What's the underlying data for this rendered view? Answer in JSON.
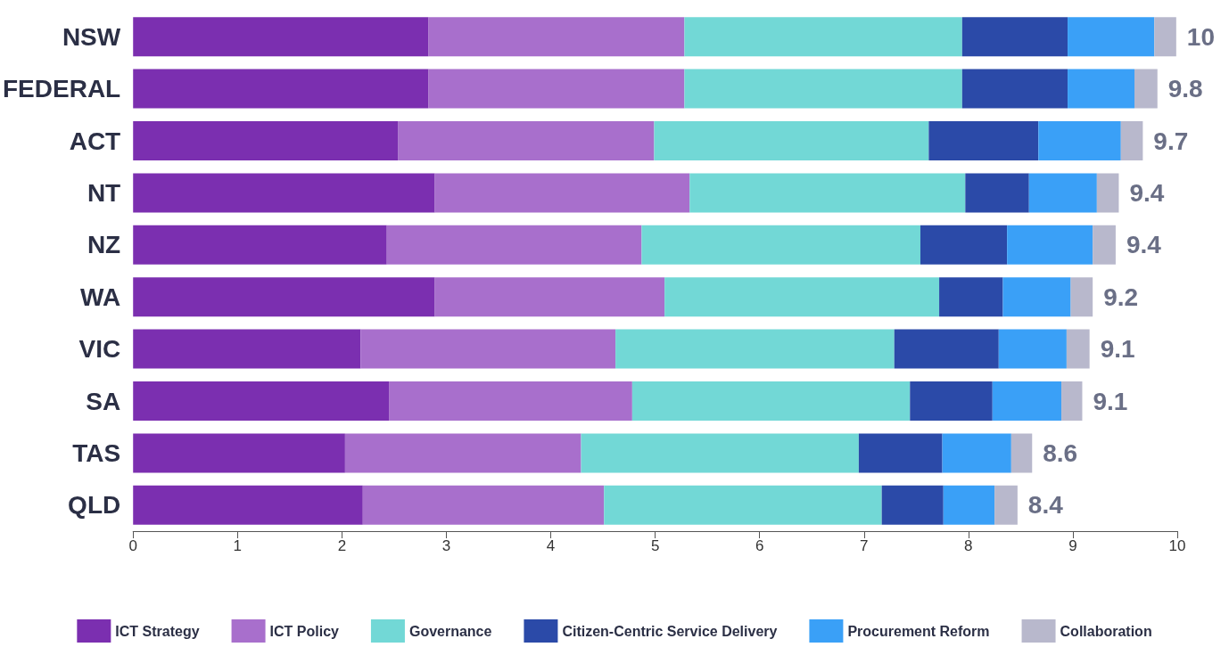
{
  "chart_data": {
    "type": "bar",
    "orientation": "horizontal",
    "stacked": true,
    "categories": [
      "NSW",
      "FEDERAL",
      "ACT",
      "NT",
      "NZ",
      "WA",
      "VIC",
      "SA",
      "TAS",
      "QLD"
    ],
    "series": [
      {
        "name": "ICT Strategy",
        "color": "#7b2fb0",
        "values": [
          2.83,
          2.83,
          2.54,
          2.89,
          2.43,
          2.89,
          2.18,
          2.45,
          2.03,
          2.2
        ]
      },
      {
        "name": "ICT Policy",
        "color": "#a86fcc",
        "values": [
          2.45,
          2.45,
          2.45,
          2.44,
          2.44,
          2.2,
          2.44,
          2.33,
          2.26,
          2.31
        ]
      },
      {
        "name": "Governance",
        "color": "#72d8d6",
        "values": [
          2.66,
          2.66,
          2.63,
          2.64,
          2.67,
          2.63,
          2.67,
          2.66,
          2.66,
          2.66
        ]
      },
      {
        "name": "Citizen-Centric Service Delivery",
        "color": "#2b4aa8",
        "values": [
          1.01,
          1.01,
          1.05,
          0.61,
          0.83,
          0.61,
          1.0,
          0.79,
          0.8,
          0.59
        ]
      },
      {
        "name": "Procurement Reform",
        "color": "#3aa0f7",
        "values": [
          0.83,
          0.64,
          0.79,
          0.65,
          0.82,
          0.65,
          0.65,
          0.66,
          0.66,
          0.49
        ]
      },
      {
        "name": "Collaboration",
        "color": "#b8b8cc",
        "values": [
          0.21,
          0.22,
          0.21,
          0.21,
          0.22,
          0.21,
          0.22,
          0.2,
          0.2,
          0.22
        ]
      }
    ],
    "totals": [
      "10",
      "9.8",
      "9.7",
      "9.4",
      "9.4",
      "9.2",
      "9.1",
      "9.1",
      "8.6",
      "8.4"
    ],
    "xlim": [
      0,
      10
    ],
    "xticks": [
      0,
      1,
      2,
      3,
      4,
      5,
      6,
      7,
      8,
      9,
      10
    ],
    "grid": false,
    "legend": "bottom"
  }
}
